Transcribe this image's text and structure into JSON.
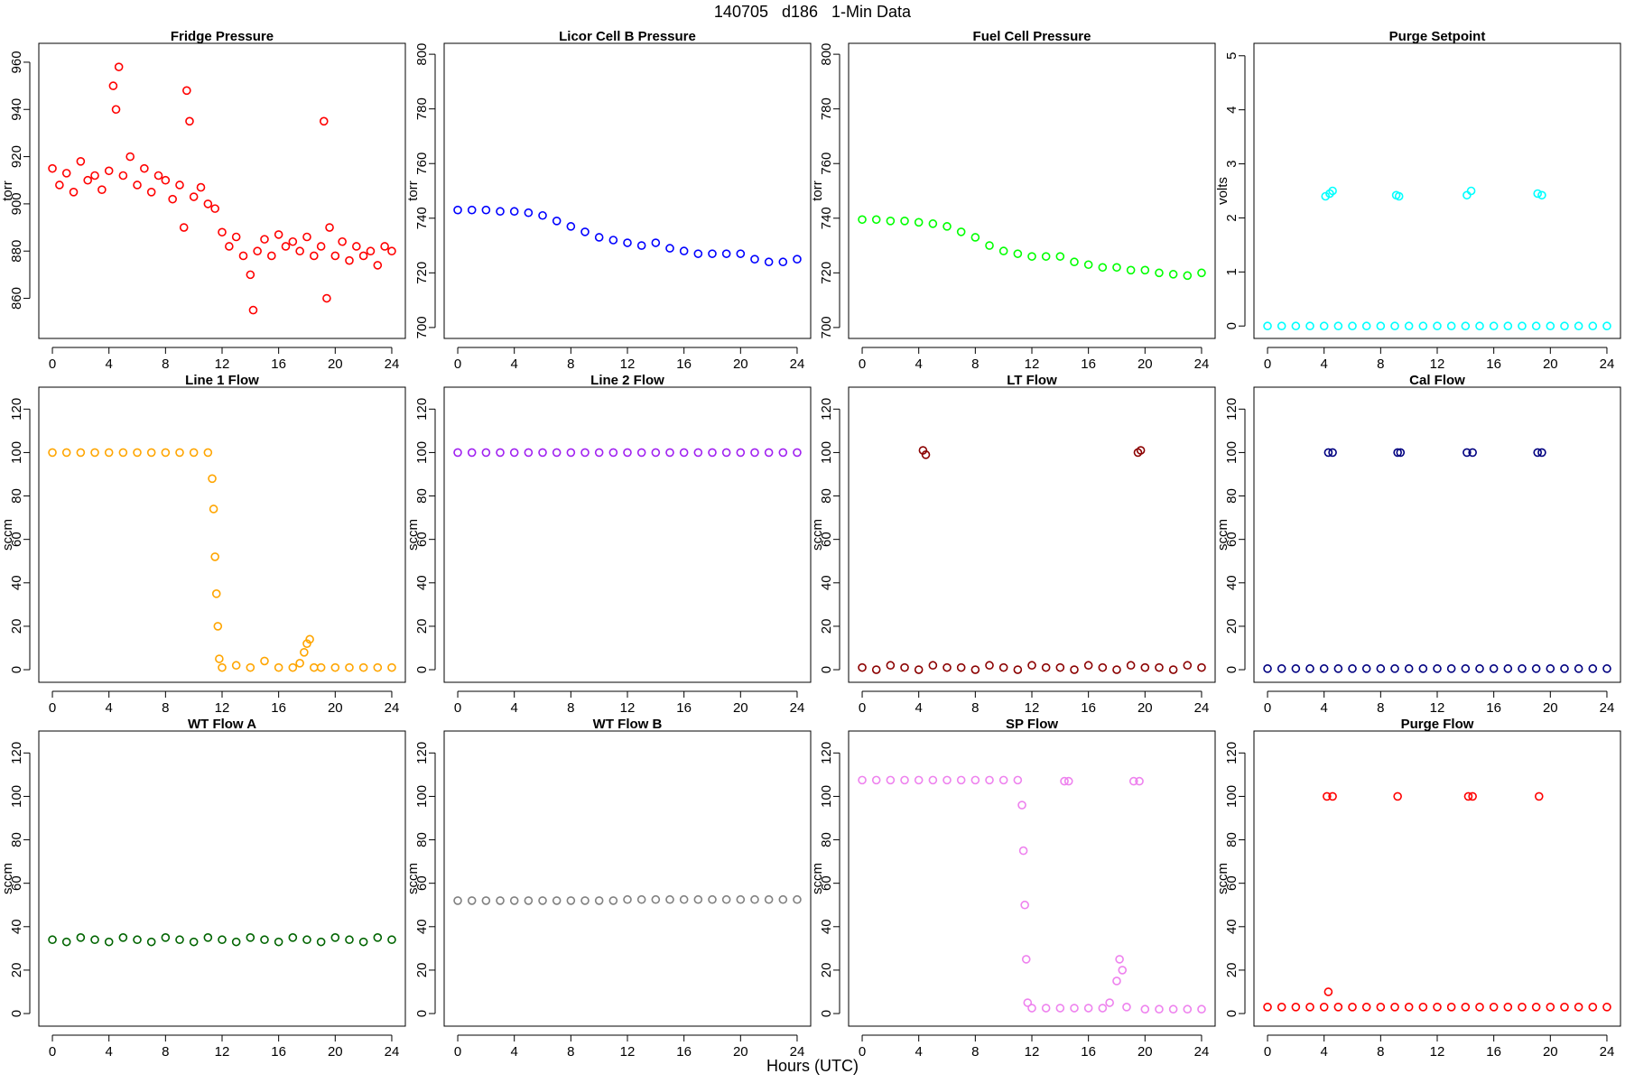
{
  "title": "140705   d186   1-Min Data",
  "x_label": "Hours (UTC)",
  "chart_data": [
    {
      "type": "scatter",
      "title": "Fridge Pressure",
      "ylabel": "torr",
      "color": "#ff0000",
      "xlim": [
        -0.96,
        24.96
      ],
      "ylim": [
        843,
        968
      ],
      "xticks": [
        0,
        4,
        8,
        12,
        16,
        20,
        24
      ],
      "yticks": [
        860,
        880,
        900,
        920,
        940,
        960
      ],
      "x": [
        0,
        0.5,
        1,
        1.5,
        2,
        2.5,
        3,
        3.5,
        4,
        4.3,
        4.5,
        4.7,
        5,
        5.5,
        6,
        6.5,
        7,
        7.5,
        8,
        8.5,
        9,
        9.3,
        9.5,
        9.7,
        10,
        10.5,
        11,
        11.5,
        12,
        12.5,
        13,
        13.5,
        14,
        14.2,
        14.5,
        15,
        15.5,
        16,
        16.5,
        17,
        17.5,
        18,
        18.5,
        19,
        19.2,
        19.4,
        19.6,
        20,
        20.5,
        21,
        21.5,
        22,
        22.5,
        23,
        23.5,
        24
      ],
      "values": [
        915,
        908,
        913,
        905,
        918,
        910,
        912,
        906,
        914,
        950,
        940,
        958,
        912,
        920,
        908,
        915,
        905,
        912,
        910,
        902,
        908,
        890,
        948,
        935,
        903,
        907,
        900,
        898,
        888,
        882,
        886,
        878,
        870,
        855,
        880,
        885,
        878,
        887,
        882,
        884,
        880,
        886,
        878,
        882,
        935,
        860,
        890,
        878,
        884,
        876,
        882,
        878,
        880,
        874,
        882,
        880
      ]
    },
    {
      "type": "scatter",
      "title": "Licor Cell B Pressure",
      "ylabel": "torr",
      "color": "#0000ff",
      "xlim": [
        -0.96,
        24.96
      ],
      "ylim": [
        696,
        804
      ],
      "xticks": [
        0,
        4,
        8,
        12,
        16,
        20,
        24
      ],
      "yticks": [
        700,
        720,
        740,
        760,
        780,
        800
      ],
      "x": [
        0,
        1,
        2,
        3,
        4,
        5,
        6,
        7,
        8,
        9,
        10,
        11,
        12,
        13,
        14,
        15,
        16,
        17,
        18,
        19,
        20,
        21,
        22,
        23,
        24
      ],
      "values": [
        743,
        743,
        743,
        742.5,
        742.5,
        742,
        741,
        739,
        737,
        735,
        733,
        732,
        731,
        730,
        731,
        729,
        728,
        727,
        727,
        727,
        727,
        725,
        724,
        724,
        725
      ]
    },
    {
      "type": "scatter",
      "title": "Fuel Cell Pressure",
      "ylabel": "torr",
      "color": "#00ff00",
      "xlim": [
        -0.96,
        24.96
      ],
      "ylim": [
        696,
        804
      ],
      "xticks": [
        0,
        4,
        8,
        12,
        16,
        20,
        24
      ],
      "yticks": [
        700,
        720,
        740,
        760,
        780,
        800
      ],
      "x": [
        0,
        1,
        2,
        3,
        4,
        5,
        6,
        7,
        8,
        9,
        10,
        11,
        12,
        13,
        14,
        15,
        16,
        17,
        18,
        19,
        20,
        21,
        22,
        23,
        24
      ],
      "values": [
        739.5,
        739.5,
        739,
        739,
        738.5,
        738,
        737,
        735,
        733,
        730,
        728,
        727,
        726,
        726,
        726,
        724,
        723,
        722,
        722,
        721,
        721,
        720,
        719.5,
        719,
        720
      ]
    },
    {
      "type": "scatter",
      "title": "Purge Setpoint",
      "ylabel": "volts",
      "color": "#00ffff",
      "xlim": [
        -0.96,
        24.96
      ],
      "ylim": [
        -0.23,
        5.23
      ],
      "xticks": [
        0,
        4,
        8,
        12,
        16,
        20,
        24
      ],
      "yticks": [
        0,
        1,
        2,
        3,
        4,
        5
      ],
      "x": [
        0,
        1,
        2,
        3,
        4,
        5,
        6,
        7,
        8,
        9,
        10,
        11,
        12,
        13,
        14,
        15,
        16,
        17,
        18,
        19,
        20,
        21,
        22,
        23,
        24,
        4.1,
        4.4,
        4.6,
        9.1,
        9.3,
        14.1,
        14.4,
        19.1,
        19.4
      ],
      "values": [
        0,
        0,
        0,
        0,
        0,
        0,
        0,
        0,
        0,
        0,
        0,
        0,
        0,
        0,
        0,
        0,
        0,
        0,
        0,
        0,
        0,
        0,
        0,
        0,
        0,
        2.4,
        2.45,
        2.5,
        2.42,
        2.4,
        2.42,
        2.5,
        2.45,
        2.42
      ]
    },
    {
      "type": "scatter",
      "title": "Line 1 Flow",
      "ylabel": "sccm",
      "color": "#ffa500",
      "xlim": [
        -0.96,
        24.96
      ],
      "ylim": [
        -5.8,
        130.1
      ],
      "xticks": [
        0,
        4,
        8,
        12,
        16,
        20,
        24
      ],
      "yticks": [
        0,
        20,
        40,
        60,
        80,
        100,
        120
      ],
      "x": [
        0,
        1,
        2,
        3,
        4,
        5,
        6,
        7,
        8,
        9,
        10,
        11,
        11.3,
        11.4,
        11.5,
        11.6,
        11.7,
        11.8,
        12,
        13,
        14,
        15,
        16,
        17,
        17.5,
        17.8,
        18,
        18.2,
        18.5,
        19,
        20,
        21,
        22,
        23,
        24
      ],
      "values": [
        100,
        100,
        100,
        100,
        100,
        100,
        100,
        100,
        100,
        100,
        100,
        100,
        88,
        74,
        52,
        35,
        20,
        5,
        1,
        2,
        1,
        4,
        1,
        1,
        3,
        8,
        12,
        14,
        1,
        1,
        1,
        1,
        1,
        1,
        1
      ]
    },
    {
      "type": "scatter",
      "title": "Line 2 Flow",
      "ylabel": "sccm",
      "color": "#a020f0",
      "xlim": [
        -0.96,
        24.96
      ],
      "ylim": [
        -5.8,
        130.1
      ],
      "xticks": [
        0,
        4,
        8,
        12,
        16,
        20,
        24
      ],
      "yticks": [
        0,
        20,
        40,
        60,
        80,
        100,
        120
      ],
      "x": [
        0,
        1,
        2,
        3,
        4,
        5,
        6,
        7,
        8,
        9,
        10,
        11,
        12,
        13,
        14,
        15,
        16,
        17,
        18,
        19,
        20,
        21,
        22,
        23,
        24
      ],
      "values": [
        100,
        100,
        100,
        100,
        100,
        100,
        100,
        100,
        100,
        100,
        100,
        100,
        100,
        100,
        100,
        100,
        100,
        100,
        100,
        100,
        100,
        100,
        100,
        100,
        100
      ]
    },
    {
      "type": "scatter",
      "title": "LT Flow",
      "ylabel": "sccm",
      "color": "#8b0000",
      "xlim": [
        -0.96,
        24.96
      ],
      "ylim": [
        -5.8,
        130.1
      ],
      "xticks": [
        0,
        4,
        8,
        12,
        16,
        20,
        24
      ],
      "yticks": [
        0,
        20,
        40,
        60,
        80,
        100,
        120
      ],
      "x": [
        0,
        1,
        2,
        3,
        4,
        5,
        6,
        7,
        8,
        9,
        10,
        11,
        12,
        13,
        14,
        15,
        16,
        17,
        18,
        19,
        20,
        21,
        22,
        23,
        24,
        4.3,
        4.5,
        19.5,
        19.7
      ],
      "values": [
        1,
        0,
        2,
        1,
        0,
        2,
        1,
        1,
        0,
        2,
        1,
        0,
        2,
        1,
        1,
        0,
        2,
        1,
        0,
        2,
        1,
        1,
        0,
        2,
        1,
        101,
        99,
        100,
        101
      ]
    },
    {
      "type": "scatter",
      "title": "Cal Flow",
      "ylabel": "sccm",
      "color": "#000080",
      "xlim": [
        -0.96,
        24.96
      ],
      "ylim": [
        -5.8,
        130.1
      ],
      "xticks": [
        0,
        4,
        8,
        12,
        16,
        20,
        24
      ],
      "yticks": [
        0,
        20,
        40,
        60,
        80,
        100,
        120
      ],
      "x": [
        0,
        1,
        2,
        3,
        4,
        5,
        6,
        7,
        8,
        9,
        10,
        11,
        12,
        13,
        14,
        15,
        16,
        17,
        18,
        19,
        20,
        21,
        22,
        23,
        24,
        4.3,
        4.6,
        9.2,
        9.4,
        14.1,
        14.5,
        19.1,
        19.4
      ],
      "values": [
        0.5,
        0.5,
        0.5,
        0.5,
        0.5,
        0.5,
        0.5,
        0.5,
        0.5,
        0.5,
        0.5,
        0.5,
        0.5,
        0.5,
        0.5,
        0.5,
        0.5,
        0.5,
        0.5,
        0.5,
        0.5,
        0.5,
        0.5,
        0.5,
        0.5,
        100,
        100,
        100,
        100,
        100,
        100,
        100,
        100
      ]
    },
    {
      "type": "scatter",
      "title": "WT Flow A",
      "ylabel": "sccm",
      "color": "#006400",
      "xlim": [
        -0.96,
        24.96
      ],
      "ylim": [
        -5.8,
        130.1
      ],
      "xticks": [
        0,
        4,
        8,
        12,
        16,
        20,
        24
      ],
      "yticks": [
        0,
        20,
        40,
        60,
        80,
        100,
        120
      ],
      "x": [
        0,
        1,
        2,
        3,
        4,
        5,
        6,
        7,
        8,
        9,
        10,
        11,
        12,
        13,
        14,
        15,
        16,
        17,
        18,
        19,
        20,
        21,
        22,
        23,
        24
      ],
      "values": [
        34,
        33,
        35,
        34,
        33,
        35,
        34,
        33,
        35,
        34,
        33,
        35,
        34,
        33,
        35,
        34,
        33,
        35,
        34,
        33,
        35,
        34,
        33,
        35,
        34
      ]
    },
    {
      "type": "scatter",
      "title": "WT Flow B",
      "ylabel": "sccm",
      "color": "#808080",
      "xlim": [
        -0.96,
        24.96
      ],
      "ylim": [
        -5.8,
        130.1
      ],
      "xticks": [
        0,
        4,
        8,
        12,
        16,
        20,
        24
      ],
      "yticks": [
        0,
        20,
        40,
        60,
        80,
        100,
        120
      ],
      "x": [
        0,
        1,
        2,
        3,
        4,
        5,
        6,
        7,
        8,
        9,
        10,
        11,
        12,
        13,
        14,
        15,
        16,
        17,
        18,
        19,
        20,
        21,
        22,
        23,
        24
      ],
      "values": [
        52,
        52,
        52,
        52,
        52,
        52,
        52,
        52,
        52,
        52,
        52,
        52,
        52.5,
        52.5,
        52.5,
        52.5,
        52.5,
        52.5,
        52.5,
        52.5,
        52.5,
        52.5,
        52.5,
        52.5,
        52.5
      ]
    },
    {
      "type": "scatter",
      "title": "SP Flow",
      "ylabel": "sccm",
      "color": "#ee82ee",
      "xlim": [
        -0.96,
        24.96
      ],
      "ylim": [
        -5.8,
        130.1
      ],
      "xticks": [
        0,
        4,
        8,
        12,
        16,
        20,
        24
      ],
      "yticks": [
        0,
        20,
        40,
        60,
        80,
        100,
        120
      ],
      "x": [
        0,
        1,
        2,
        3,
        4,
        5,
        6,
        7,
        8,
        9,
        10,
        11,
        11.3,
        11.4,
        11.5,
        11.6,
        11.7,
        12,
        13,
        14,
        14.3,
        14.6,
        15,
        16,
        17,
        17.5,
        18,
        18.2,
        18.4,
        18.7,
        19.2,
        19.6,
        20,
        21,
        22,
        23,
        24
      ],
      "values": [
        107.5,
        107.5,
        107.5,
        107.5,
        107.5,
        107.5,
        107.5,
        107.5,
        107.5,
        107.5,
        107.5,
        107.5,
        96,
        75,
        50,
        25,
        5,
        2.5,
        2.5,
        2.5,
        107,
        107,
        2.5,
        2.5,
        2.5,
        5,
        15,
        25,
        20,
        3,
        107,
        107,
        2,
        2,
        2,
        2,
        2
      ]
    },
    {
      "type": "scatter",
      "title": "Purge Flow",
      "ylabel": "sccm",
      "color": "#ff0000",
      "xlim": [
        -0.96,
        24.96
      ],
      "ylim": [
        -5.8,
        130.1
      ],
      "xticks": [
        0,
        4,
        8,
        12,
        16,
        20,
        24
      ],
      "yticks": [
        0,
        20,
        40,
        60,
        80,
        100,
        120
      ],
      "x": [
        0,
        1,
        2,
        3,
        4,
        5,
        6,
        7,
        8,
        9,
        10,
        11,
        12,
        13,
        14,
        15,
        16,
        17,
        18,
        19,
        20,
        21,
        22,
        23,
        24,
        4.3,
        4.2,
        4.6,
        9.2,
        14.2,
        14.5,
        19.2
      ],
      "values": [
        3,
        3,
        3,
        3,
        3,
        3,
        3,
        3,
        3,
        3,
        3,
        3,
        3,
        3,
        3,
        3,
        3,
        3,
        3,
        3,
        3,
        3,
        3,
        3,
        3,
        10,
        100,
        100,
        100,
        100,
        100,
        100
      ]
    }
  ]
}
